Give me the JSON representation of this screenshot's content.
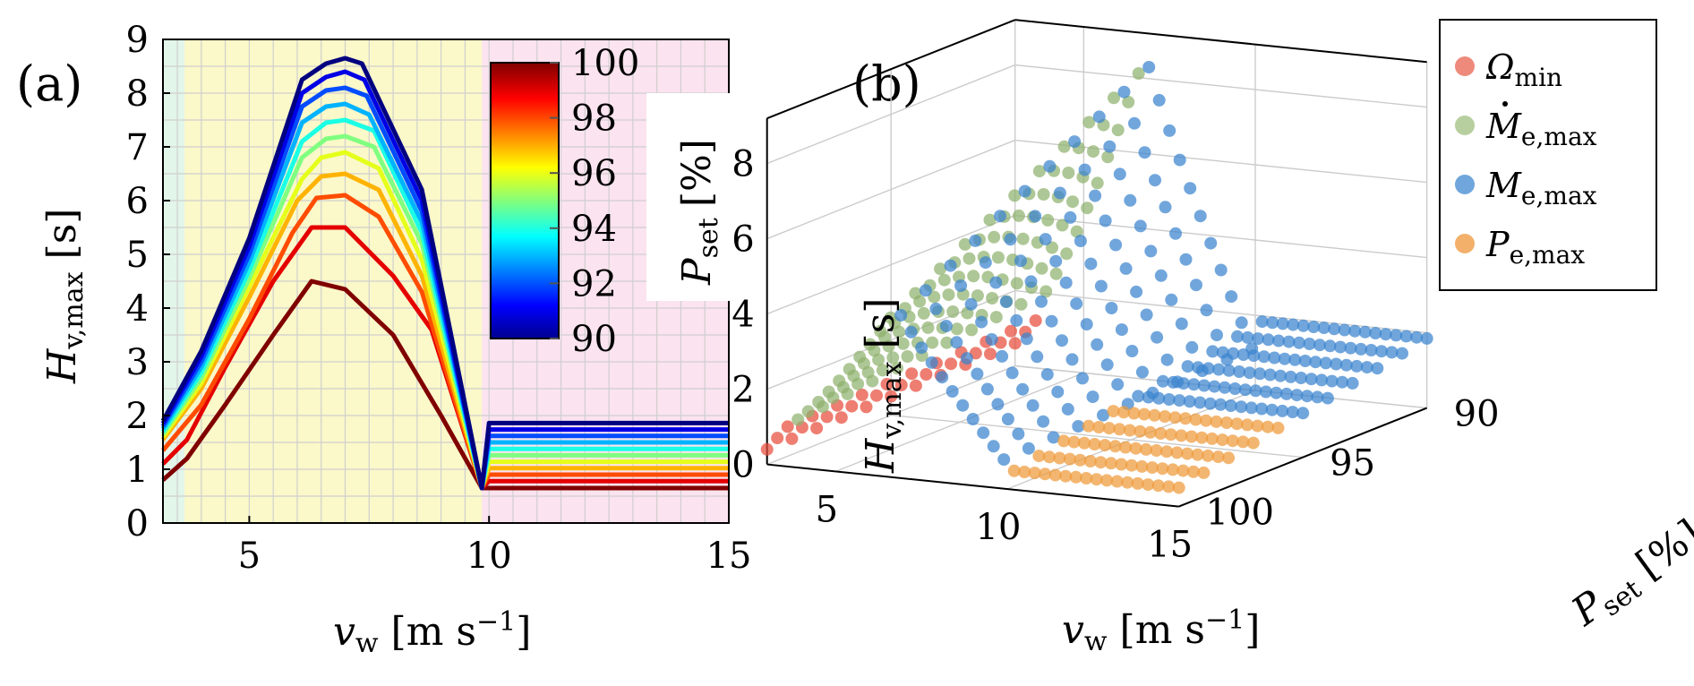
{
  "chart_data": [
    {
      "panel": "(a)",
      "type": "line",
      "xlabel": "v_w [m s^-1]",
      "ylabel": "H_v,max [s]",
      "xlim": [
        3.2,
        15
      ],
      "ylim": [
        0,
        9
      ],
      "xticks": [
        "5",
        "10",
        "15"
      ],
      "xtick_values": [
        5,
        10,
        15
      ],
      "yticks": [
        "0",
        "1",
        "2",
        "3",
        "4",
        "5",
        "6",
        "7",
        "8",
        "9"
      ],
      "ytick_values": [
        0,
        1,
        2,
        3,
        4,
        5,
        6,
        7,
        8,
        9
      ],
      "regions": [
        {
          "name": "region-1",
          "x0": 3.2,
          "x1": 3.65,
          "color": "#e3f6ea"
        },
        {
          "name": "region-2",
          "x0": 3.65,
          "x1": 9.85,
          "color": "#fbf8c9"
        },
        {
          "name": "region-3",
          "x0": 9.85,
          "x1": 15,
          "color": "#fbe3ef"
        }
      ],
      "colorbar": {
        "label": "P_set [%]",
        "min": 90,
        "max": 100,
        "ticks": [
          "90",
          "92",
          "94",
          "96",
          "98",
          "100"
        ],
        "tick_values": [
          90,
          92,
          94,
          96,
          98,
          100
        ]
      },
      "series": [
        {
          "name": "P_set = 100",
          "pset": 100,
          "x": [
            3.2,
            3.7,
            4.5,
            5.5,
            6.3,
            7.0,
            8.0,
            9.0,
            9.85,
            10,
            15
          ],
          "y": [
            0.8,
            1.2,
            2.2,
            3.5,
            4.5,
            4.35,
            3.5,
            2.0,
            0.65,
            0.65,
            0.65
          ]
        },
        {
          "name": "P_set = 99",
          "pset": 99,
          "x": [
            3.2,
            3.7,
            4.5,
            5.5,
            6.3,
            7.0,
            8.0,
            8.8,
            9.85,
            10,
            15
          ],
          "y": [
            1.1,
            1.55,
            2.9,
            4.5,
            5.5,
            5.5,
            4.6,
            3.6,
            0.65,
            0.78,
            0.78
          ]
        },
        {
          "name": "P_set = 98",
          "pset": 98,
          "x": [
            3.2,
            4.0,
            5.0,
            5.9,
            6.4,
            7.0,
            7.7,
            8.6,
            9.85,
            10,
            15
          ],
          "y": [
            1.35,
            2.2,
            3.8,
            5.4,
            6.05,
            6.1,
            5.7,
            4.3,
            0.65,
            0.9,
            0.9
          ]
        },
        {
          "name": "P_set = 97",
          "pset": 97,
          "x": [
            3.2,
            4.0,
            5.0,
            6.0,
            6.5,
            7.0,
            7.7,
            8.6,
            9.85,
            10,
            15
          ],
          "y": [
            1.55,
            2.5,
            4.2,
            6.0,
            6.45,
            6.5,
            6.2,
            4.6,
            0.65,
            1.02,
            1.02
          ]
        },
        {
          "name": "P_set = 96",
          "pset": 96,
          "x": [
            3.2,
            4.0,
            5.0,
            6.1,
            6.5,
            7.0,
            7.7,
            8.6,
            9.85,
            10,
            15
          ],
          "y": [
            1.6,
            2.6,
            4.4,
            6.4,
            6.8,
            6.9,
            6.6,
            4.9,
            0.65,
            1.14,
            1.14
          ]
        },
        {
          "name": "P_set = 95",
          "pset": 95,
          "x": [
            3.2,
            4.0,
            5.0,
            6.1,
            6.6,
            7.0,
            7.6,
            8.6,
            9.85,
            10,
            15
          ],
          "y": [
            1.65,
            2.7,
            4.55,
            6.8,
            7.15,
            7.2,
            7.0,
            5.2,
            0.65,
            1.26,
            1.26
          ]
        },
        {
          "name": "P_set = 94",
          "pset": 94,
          "x": [
            3.2,
            4.0,
            5.0,
            6.1,
            6.6,
            7.0,
            7.6,
            8.6,
            9.85,
            10,
            15
          ],
          "y": [
            1.7,
            2.8,
            4.7,
            7.1,
            7.45,
            7.5,
            7.3,
            5.4,
            0.65,
            1.38,
            1.38
          ]
        },
        {
          "name": "P_set = 93",
          "pset": 93,
          "x": [
            3.2,
            4.0,
            5.0,
            6.1,
            6.6,
            7.0,
            7.5,
            8.6,
            9.85,
            10,
            15
          ],
          "y": [
            1.75,
            2.9,
            4.85,
            7.45,
            7.75,
            7.8,
            7.6,
            5.6,
            0.65,
            1.5,
            1.5
          ]
        },
        {
          "name": "P_set = 92",
          "pset": 92,
          "x": [
            3.2,
            4.0,
            5.0,
            6.1,
            6.6,
            7.0,
            7.45,
            8.6,
            9.85,
            10,
            15
          ],
          "y": [
            1.8,
            3.0,
            5.0,
            7.75,
            8.05,
            8.1,
            7.95,
            5.8,
            0.65,
            1.62,
            1.62
          ]
        },
        {
          "name": "P_set = 91",
          "pset": 91,
          "x": [
            3.2,
            4.0,
            5.0,
            6.1,
            6.6,
            7.0,
            7.4,
            8.6,
            9.85,
            10,
            15
          ],
          "y": [
            1.85,
            3.1,
            5.15,
            8.0,
            8.3,
            8.4,
            8.25,
            6.0,
            0.65,
            1.74,
            1.74
          ]
        },
        {
          "name": "P_set = 90",
          "pset": 90,
          "x": [
            3.2,
            4.0,
            5.0,
            6.1,
            6.6,
            7.0,
            7.35,
            8.6,
            9.85,
            10,
            15
          ],
          "y": [
            1.9,
            3.2,
            5.3,
            8.25,
            8.55,
            8.65,
            8.55,
            6.2,
            0.65,
            1.86,
            1.86
          ]
        }
      ]
    },
    {
      "panel": "(b)",
      "type": "scatter",
      "xlabel": "v_w [m s^-1]",
      "ylabel": "H_v,max [s]",
      "zlabel": "P_set [%]",
      "xlim": [
        3,
        15
      ],
      "ylim": [
        90,
        100
      ],
      "zlim": [
        0,
        9
      ],
      "xticks": [
        "5",
        "10",
        "15"
      ],
      "xtick_values": [
        5,
        10,
        15
      ],
      "yticks": [
        "90",
        "95",
        "100"
      ],
      "ytick_values": [
        90,
        95,
        100
      ],
      "zticks": [
        "0",
        "2",
        "4",
        "6",
        "8"
      ],
      "ztick_values": [
        0,
        2,
        4,
        6,
        8
      ],
      "legend": {
        "position": "top-right",
        "entries": [
          {
            "label": "Ω_min",
            "main": "Ω",
            "sub": "min",
            "dot": false,
            "color": "#ee8a7c"
          },
          {
            "label": "Ṁ_e,max",
            "main": "M",
            "sub": "e,max",
            "dot": true,
            "color": "#b7cf9e"
          },
          {
            "label": "M_e,max",
            "main": "M",
            "sub": "e,max",
            "dot": false,
            "color": "#6fa6dc"
          },
          {
            "label": "P_e,max",
            "main": "P",
            "sub": "e,max",
            "dot": false,
            "color": "#f2b06b"
          }
        ]
      },
      "categories": [
        {
          "name": "Omega_min",
          "color": "#e74c3c",
          "vw_range": [
            3.0,
            3.6
          ]
        },
        {
          "name": "Mdot_e,max",
          "color": "#8fb16d",
          "vw_range": [
            3.6,
            6.8
          ]
        },
        {
          "name": "M_e,max",
          "color": "#3a83cf",
          "vw_range": [
            6.8,
            15.0
          ]
        },
        {
          "name": "P_e,max",
          "color": "#ef9a3a",
          "vw_range": [
            10.2,
            15.0
          ]
        }
      ]
    }
  ],
  "labels": {
    "panel_a": "(a)",
    "panel_b": "(b)",
    "xlabel_var": "v",
    "xlabel_sub": "w",
    "xlabel_unit": "[m s",
    "xlabel_exp": "−1",
    "xlabel_close": "]",
    "ylabel_var": "H",
    "ylabel_sub": "v,max",
    "ylabel_unit": "[s]",
    "cbar_var": "P",
    "cbar_sub": "set",
    "cbar_unit": "[%]",
    "zlabel_var": "P",
    "zlabel_sub": "set",
    "zlabel_unit": "[%]"
  }
}
